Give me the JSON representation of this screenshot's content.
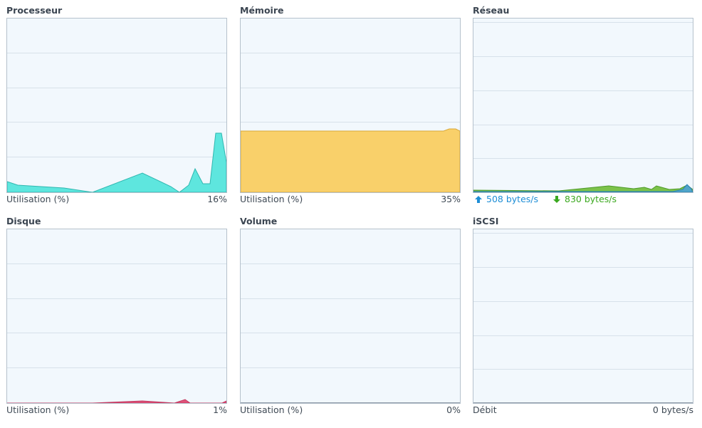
{
  "panels": {
    "cpu": {
      "title": "Processeur",
      "footer_label": "Utilisation (%)",
      "footer_value": "16%",
      "color": "#5ee6de",
      "stroke": "#2fb7b0"
    },
    "memory": {
      "title": "Mémoire",
      "footer_label": "Utilisation (%)",
      "footer_value": "35%",
      "color": "#f9d06a",
      "stroke": "#d9a83a"
    },
    "network": {
      "title": "Réseau",
      "upload": "508 bytes/s",
      "download": "830 bytes/s",
      "upload_color": "#1e8ed6",
      "download_color": "#3aa81e",
      "upload_icon": "arrow-up-icon",
      "download_icon": "arrow-down-icon"
    },
    "disk": {
      "title": "Disque",
      "footer_label": "Utilisation (%)",
      "footer_value": "1%",
      "color": "#e0537a",
      "stroke": "#c2365e"
    },
    "volume": {
      "title": "Volume",
      "footer_label": "Utilisation (%)",
      "footer_value": "0%"
    },
    "iscsi": {
      "title": "iSCSI",
      "footer_label": "Débit",
      "footer_value": "0 bytes/s"
    }
  }
}
